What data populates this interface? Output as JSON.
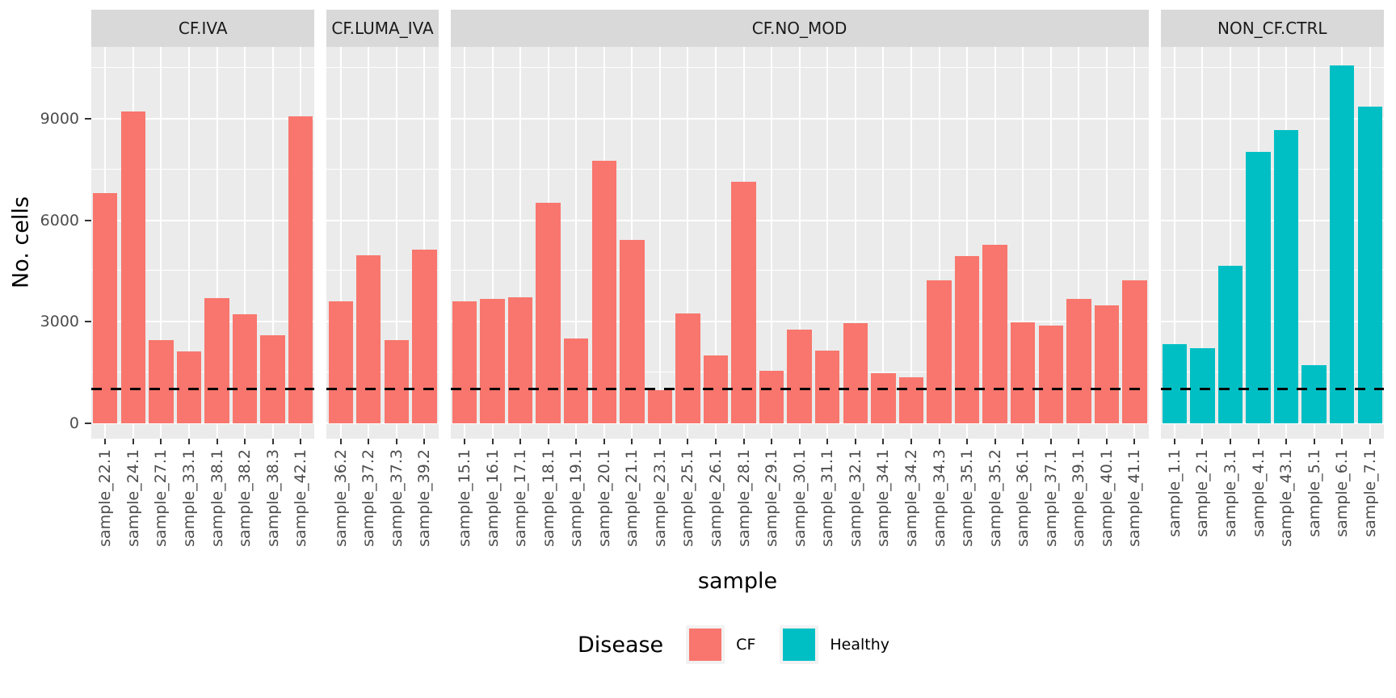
{
  "chart_data": {
    "type": "bar",
    "title": "",
    "xlabel": "sample",
    "ylabel": "No. cells",
    "grid": true,
    "legend_position": "bottom",
    "ylim": [
      0,
      11120
    ],
    "y_ticks_major": [
      0,
      3000,
      6000,
      9000
    ],
    "y_gridlines_minor": [
      1500,
      4500,
      7500,
      10500
    ],
    "hline": {
      "value": 1000,
      "style": "dashed",
      "color": "#000000"
    },
    "colors": {
      "CF": "#F8766D",
      "Healthy": "#00BFC4",
      "panel_bg": "#EBEBEB",
      "strip_bg": "#D9D9D9",
      "gridline": "#FFFFFF"
    },
    "legend": {
      "title": "Disease",
      "items": [
        {
          "label": "CF",
          "color": "#F8766D"
        },
        {
          "label": "Healthy",
          "color": "#00BFC4"
        }
      ]
    },
    "facets": [
      {
        "label": "CF.IVA",
        "group": "CF",
        "samples": [
          "sample_22.1",
          "sample_24.1",
          "sample_27.1",
          "sample_33.1",
          "sample_38.1",
          "sample_38.2",
          "sample_38.3",
          "sample_42.1"
        ],
        "values": [
          6800,
          9220,
          2460,
          2120,
          3700,
          3220,
          2590,
          9070
        ]
      },
      {
        "label": "CF.LUMA_IVA",
        "group": "CF",
        "samples": [
          "sample_36.2",
          "sample_37.2",
          "sample_37.3",
          "sample_39.2"
        ],
        "values": [
          3600,
          4960,
          2470,
          5130
        ]
      },
      {
        "label": "CF.NO_MOD",
        "group": "CF",
        "samples": [
          "sample_15.1",
          "sample_16.1",
          "sample_17.1",
          "sample_18.1",
          "sample_19.1",
          "sample_20.1",
          "sample_21.1",
          "sample_23.1",
          "sample_25.1",
          "sample_26.1",
          "sample_28.1",
          "sample_29.1",
          "sample_30.1",
          "sample_31.1",
          "sample_32.1",
          "sample_34.1",
          "sample_34.2",
          "sample_34.3",
          "sample_35.1",
          "sample_35.2",
          "sample_36.1",
          "sample_37.1",
          "sample_39.1",
          "sample_40.1",
          "sample_41.1"
        ],
        "values": [
          3600,
          3680,
          3720,
          6520,
          2510,
          7760,
          5420,
          990,
          3250,
          2010,
          7140,
          1540,
          2760,
          2150,
          2960,
          1470,
          1350,
          4220,
          4930,
          5270,
          2980,
          2880,
          3680,
          3480,
          4220
        ]
      },
      {
        "label": "NON_CF.CTRL",
        "group": "Healthy",
        "samples": [
          "sample_1.1",
          "sample_2.1",
          "sample_3.1",
          "sample_4.1",
          "sample_43.1",
          "sample_5.1",
          "sample_6.1",
          "sample_7.1"
        ],
        "values": [
          2350,
          2230,
          4650,
          8010,
          8670,
          1710,
          10560,
          9360
        ]
      }
    ]
  }
}
